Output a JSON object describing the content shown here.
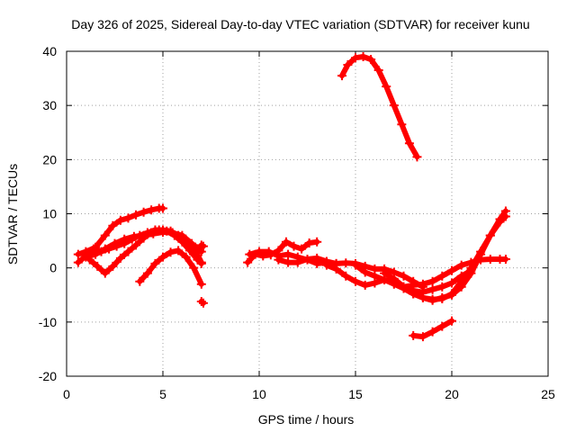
{
  "chart_data": {
    "type": "scatter",
    "title": "Day 326 of 2025, Sidereal Day-to-day VTEC variation (SDTVAR) for receiver kunu",
    "xlabel": "GPS time / hours",
    "ylabel": "SDTVAR / TECUs",
    "xlim": [
      0,
      25
    ],
    "ylim": [
      -20,
      40
    ],
    "xticks": [
      0,
      5,
      10,
      15,
      20,
      25
    ],
    "yticks": [
      -20,
      -10,
      0,
      10,
      20,
      30,
      40
    ],
    "xtick_labels": [
      "0",
      "5",
      "10",
      "15",
      "20",
      "25"
    ],
    "ytick_labels": [
      "-20",
      "-10",
      "0",
      "10",
      "20",
      "30",
      "40"
    ],
    "grid": true,
    "marker": "plus",
    "color": "#ff0000",
    "series": [
      {
        "name": "s1",
        "x": [
          0.6,
          1.0,
          1.5,
          2.0,
          2.4,
          2.8,
          3.2,
          3.6,
          4.0,
          4.4,
          4.8,
          5.0
        ],
        "y": [
          2.5,
          3.0,
          3.8,
          6.0,
          7.8,
          8.8,
          9.2,
          9.8,
          10.3,
          10.7,
          11.0,
          11.0
        ]
      },
      {
        "name": "s2",
        "x": [
          0.6,
          1.0,
          1.4,
          1.8,
          2.2,
          2.6,
          3.0,
          3.4,
          3.8,
          4.2,
          4.6,
          5.0,
          5.4,
          5.8,
          6.2,
          6.6,
          7.0
        ],
        "y": [
          1.0,
          2.2,
          3.5,
          3.0,
          3.5,
          4.0,
          4.5,
          5.3,
          6.0,
          6.5,
          7.0,
          7.0,
          6.8,
          6.0,
          5.0,
          3.8,
          1.0
        ]
      },
      {
        "name": "s3",
        "x": [
          1.0,
          1.5,
          2.0,
          2.5,
          3.0,
          3.5,
          4.0,
          4.5,
          5.0,
          5.5,
          6.0,
          6.5,
          7.0
        ],
        "y": [
          2.0,
          2.5,
          3.5,
          4.5,
          5.3,
          5.8,
          6.0,
          6.3,
          6.6,
          6.5,
          6.0,
          4.5,
          3.0
        ]
      },
      {
        "name": "s4",
        "x": [
          1.2,
          1.6,
          2.0,
          2.4,
          2.8,
          3.2,
          3.6,
          4.0,
          4.4,
          4.8,
          5.2,
          5.6,
          6.0,
          6.4,
          6.8,
          7.0
        ],
        "y": [
          1.5,
          0.3,
          -1.0,
          0.3,
          1.8,
          3.0,
          4.2,
          5.5,
          6.5,
          7.0,
          6.8,
          6.0,
          4.8,
          3.2,
          1.5,
          0.8
        ]
      },
      {
        "name": "s5",
        "x": [
          3.8,
          4.2,
          4.6,
          5.0,
          5.4,
          5.8,
          6.2,
          6.6,
          7.0
        ],
        "y": [
          -2.5,
          -1.0,
          0.8,
          2.0,
          2.9,
          3.2,
          2.0,
          0.0,
          -3.0
        ]
      },
      {
        "name": "s6",
        "x": [
          7.0,
          7.1
        ],
        "y": [
          -6.2,
          -6.5
        ]
      },
      {
        "name": "s7",
        "x": [
          7.0,
          7.1
        ],
        "y": [
          4.2,
          4.0
        ]
      },
      {
        "name": "s8",
        "x": [
          9.4,
          9.8,
          10.2,
          10.6,
          11.0,
          11.4,
          11.8,
          12.2,
          12.6,
          13.0
        ],
        "y": [
          1.0,
          2.5,
          2.2,
          2.4,
          3.2,
          4.8,
          4.0,
          3.5,
          4.6,
          4.8
        ]
      },
      {
        "name": "s9",
        "x": [
          9.5,
          10.0,
          10.5,
          11.0,
          11.5,
          12.0,
          12.5,
          13.0,
          13.5,
          14.0
        ],
        "y": [
          2.5,
          3.0,
          3.0,
          2.2,
          2.5,
          2.0,
          1.5,
          0.8,
          1.0,
          0.8
        ]
      },
      {
        "name": "s10",
        "x": [
          11.0,
          11.5,
          12.0,
          12.5,
          13.0,
          13.5,
          14.0,
          14.5,
          15.0,
          15.5,
          16.0,
          16.5,
          17.0,
          17.5,
          18.0,
          18.5
        ],
        "y": [
          1.5,
          1.0,
          1.0,
          1.6,
          1.8,
          1.2,
          0.8,
          0.9,
          0.8,
          0.3,
          -0.2,
          -0.2,
          -0.8,
          -1.5,
          -2.5,
          -3.5
        ]
      },
      {
        "name": "s11",
        "x": [
          13.5,
          14.0,
          14.5,
          15.0,
          15.5,
          16.0,
          16.5,
          17.0,
          17.5,
          18.0,
          18.5,
          19.0,
          19.5,
          20.0,
          20.5,
          21.0
        ],
        "y": [
          0.5,
          -0.2,
          -1.5,
          -2.5,
          -3.2,
          -2.8,
          -2.2,
          -2.8,
          -3.5,
          -4.2,
          -4.5,
          -4.0,
          -3.5,
          -2.8,
          -1.5,
          -0.5
        ]
      },
      {
        "name": "s12",
        "x": [
          15.0,
          15.5,
          16.0,
          16.5,
          17.0,
          17.5,
          18.0,
          18.5,
          19.0,
          19.5,
          20.0,
          20.5,
          21.0,
          21.5,
          22.0,
          22.5,
          22.8
        ],
        "y": [
          0.5,
          -0.8,
          -1.5,
          -2.2,
          -3.0,
          -3.8,
          -4.8,
          -5.5,
          -6.0,
          -5.5,
          -5.0,
          -3.5,
          -1.0,
          2.5,
          6.0,
          9.0,
          10.5
        ]
      },
      {
        "name": "s13",
        "x": [
          16.5,
          17.0,
          17.5,
          18.0,
          18.5,
          19.0,
          19.5,
          20.0,
          20.5,
          21.0,
          21.5,
          22.0,
          22.5,
          22.8
        ],
        "y": [
          -1.0,
          -2.0,
          -3.5,
          -4.8,
          -5.5,
          -5.8,
          -5.7,
          -4.8,
          -2.5,
          0.0,
          3.0,
          6.0,
          8.5,
          9.5
        ]
      },
      {
        "name": "s14",
        "x": [
          17.5,
          18.0,
          18.5,
          19.0,
          19.5,
          20.0,
          20.5,
          21.0,
          21.5,
          22.0,
          22.5,
          22.8
        ],
        "y": [
          -3.5,
          -3.2,
          -3.0,
          -2.5,
          -1.5,
          -0.5,
          0.5,
          1.0,
          1.5,
          1.6,
          1.6,
          1.6
        ]
      },
      {
        "name": "s15",
        "x": [
          18.0,
          18.5,
          19.0,
          19.5,
          20.0
        ],
        "y": [
          -12.5,
          -12.7,
          -11.8,
          -10.8,
          -9.8
        ]
      },
      {
        "name": "s16",
        "x": [
          14.3,
          14.6,
          15.0,
          15.4,
          15.8,
          16.2,
          16.6,
          17.0,
          17.4,
          17.8,
          18.2
        ],
        "y": [
          35.5,
          37.5,
          38.8,
          39.0,
          38.5,
          36.5,
          33.5,
          30.0,
          26.5,
          23.0,
          20.5
        ]
      }
    ]
  }
}
